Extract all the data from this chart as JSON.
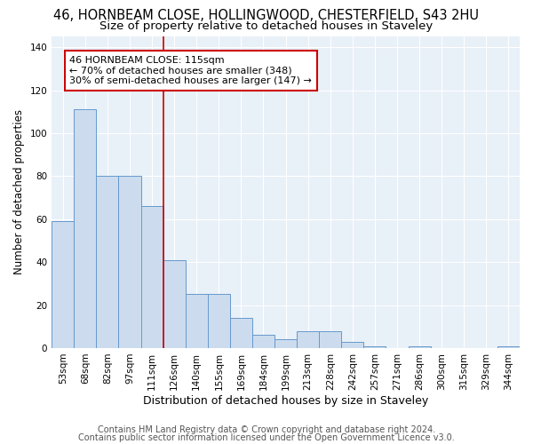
{
  "title_line1": "46, HORNBEAM CLOSE, HOLLINGWOOD, CHESTERFIELD, S43 2HU",
  "title_line2": "Size of property relative to detached houses in Staveley",
  "xlabel": "Distribution of detached houses by size in Staveley",
  "ylabel": "Number of detached properties",
  "bar_labels": [
    "53sqm",
    "68sqm",
    "82sqm",
    "97sqm",
    "111sqm",
    "126sqm",
    "140sqm",
    "155sqm",
    "169sqm",
    "184sqm",
    "199sqm",
    "213sqm",
    "228sqm",
    "242sqm",
    "257sqm",
    "271sqm",
    "286sqm",
    "300sqm",
    "315sqm",
    "329sqm",
    "344sqm"
  ],
  "bar_values": [
    59,
    111,
    80,
    80,
    66,
    41,
    25,
    25,
    14,
    6,
    4,
    8,
    8,
    3,
    1,
    0,
    1,
    0,
    0,
    0,
    1
  ],
  "bar_color": "#ccdcee",
  "bar_edge_color": "#6699cc",
  "vline_x_index": 4.5,
  "vline_color": "#cc0000",
  "annotation_title": "46 HORNBEAM CLOSE: 115sqm",
  "annotation_line2": "← 70% of detached houses are smaller (348)",
  "annotation_line3": "30% of semi-detached houses are larger (147) →",
  "annotation_box_color": "#cc0000",
  "annotation_bg": "#ffffff",
  "ylim": [
    0,
    145
  ],
  "yticks": [
    0,
    20,
    40,
    60,
    80,
    100,
    120,
    140
  ],
  "footer_line1": "Contains HM Land Registry data © Crown copyright and database right 2024.",
  "footer_line2": "Contains public sector information licensed under the Open Government Licence v3.0.",
  "background_color": "#e8f0f8",
  "grid_color": "#ffffff",
  "title1_fontsize": 10.5,
  "title2_fontsize": 9.5,
  "xlabel_fontsize": 9,
  "ylabel_fontsize": 8.5,
  "footer_fontsize": 7,
  "tick_fontsize": 7.5,
  "annot_fontsize": 8
}
